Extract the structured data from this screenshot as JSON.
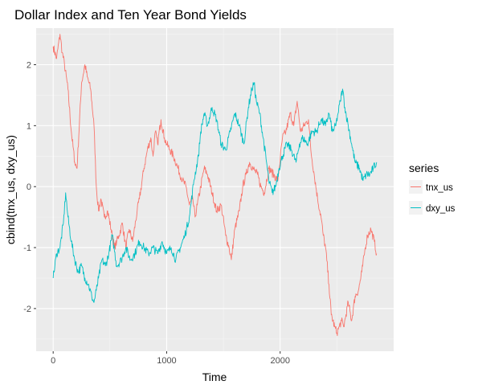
{
  "chart_data": {
    "type": "line",
    "title": "Dollar Index and Ten Year Bond Yields",
    "xlabel": "Time",
    "ylabel": "cbind(tnx_us, dxy_us)",
    "xlim": [
      -150,
      3000
    ],
    "ylim": [
      -2.7,
      2.6
    ],
    "x_ticks": [
      0,
      1000,
      2000
    ],
    "y_ticks": [
      -2,
      -1,
      0,
      1,
      2
    ],
    "grid": true,
    "legend": {
      "title": "series",
      "position": "right",
      "entries": [
        "tnx_us",
        "dxy_us"
      ]
    },
    "series": [
      {
        "name": "tnx_us",
        "color": "#F8766D",
        "x": [
          0,
          30,
          60,
          80,
          100,
          130,
          160,
          190,
          210,
          250,
          280,
          300,
          330,
          360,
          380,
          400,
          420,
          450,
          480,
          510,
          540,
          560,
          580,
          610,
          640,
          670,
          700,
          740,
          760,
          800,
          830,
          860,
          880,
          900,
          920,
          950,
          980,
          1000,
          1030,
          1060,
          1100,
          1140,
          1170,
          1200,
          1230,
          1250,
          1270,
          1300,
          1330,
          1360,
          1400,
          1440,
          1480,
          1520,
          1550,
          1570,
          1600,
          1640,
          1670,
          1700,
          1730,
          1760,
          1800,
          1830,
          1860,
          1900,
          1940,
          1980,
          2020,
          2050,
          2090,
          2120,
          2150,
          2180,
          2210,
          2250,
          2270,
          2300,
          2330,
          2360,
          2380,
          2400,
          2430,
          2450,
          2480,
          2500,
          2520,
          2540,
          2560,
          2580,
          2600,
          2630,
          2660,
          2690,
          2720,
          2750,
          2770,
          2800,
          2830,
          2850
        ],
        "y": [
          2.3,
          2.1,
          2.5,
          2.2,
          2.0,
          1.6,
          0.9,
          0.4,
          0.3,
          1.7,
          2.0,
          1.8,
          1.6,
          1.0,
          0.0,
          -0.4,
          -0.2,
          -0.5,
          -0.4,
          -0.7,
          -1.0,
          -0.9,
          -0.8,
          -0.6,
          -1.0,
          -0.7,
          -0.9,
          -0.4,
          -0.2,
          0.3,
          0.6,
          0.8,
          0.5,
          0.9,
          0.7,
          1.1,
          0.8,
          0.7,
          0.6,
          0.5,
          0.3,
          0.1,
          0.0,
          -0.3,
          -0.2,
          -0.5,
          -0.3,
          0.0,
          0.3,
          0.2,
          -0.1,
          -0.4,
          -0.3,
          -0.8,
          -1.0,
          -1.2,
          -0.7,
          -0.4,
          0.0,
          0.2,
          0.4,
          0.3,
          0.2,
          0.0,
          -0.1,
          0.3,
          0.2,
          0.1,
          0.8,
          0.9,
          1.2,
          1.0,
          1.4,
          0.9,
          1.0,
          1.1,
          0.6,
          0.2,
          -0.2,
          -0.5,
          -0.8,
          -1.0,
          -1.6,
          -2.1,
          -2.3,
          -2.4,
          -2.3,
          -2.2,
          -2.3,
          -2.1,
          -1.9,
          -2.2,
          -1.8,
          -1.7,
          -1.4,
          -1.0,
          -0.8,
          -0.7,
          -0.9,
          -1.1
        ]
      },
      {
        "name": "dxy_us",
        "color": "#00BFC4",
        "x": [
          0,
          30,
          60,
          90,
          110,
          130,
          160,
          190,
          220,
          250,
          280,
          310,
          340,
          360,
          380,
          400,
          430,
          460,
          490,
          520,
          560,
          600,
          640,
          680,
          720,
          760,
          800,
          840,
          880,
          920,
          960,
          1000,
          1040,
          1080,
          1120,
          1160,
          1200,
          1240,
          1280,
          1300,
          1330,
          1360,
          1400,
          1440,
          1480,
          1520,
          1560,
          1600,
          1640,
          1680,
          1720,
          1750,
          1770,
          1790,
          1820,
          1850,
          1880,
          1900,
          1930,
          1960,
          1990,
          2020,
          2060,
          2100,
          2140,
          2170,
          2200,
          2240,
          2280,
          2320,
          2360,
          2400,
          2430,
          2460,
          2490,
          2510,
          2530,
          2550,
          2570,
          2600,
          2630,
          2660,
          2700,
          2730,
          2760,
          2790,
          2820,
          2850
        ],
        "y": [
          -1.5,
          -1.1,
          -1.0,
          -0.6,
          -0.1,
          -0.5,
          -0.9,
          -1.2,
          -1.4,
          -1.3,
          -1.5,
          -1.6,
          -1.8,
          -1.9,
          -1.7,
          -1.5,
          -1.2,
          -1.3,
          -1.1,
          -0.8,
          -1.3,
          -1.2,
          -1.0,
          -1.2,
          -1.1,
          -0.9,
          -1.0,
          -1.1,
          -1.0,
          -1.1,
          -0.9,
          -1.1,
          -1.0,
          -1.2,
          -1.0,
          -0.8,
          -0.5,
          0.1,
          0.5,
          0.9,
          1.2,
          1.0,
          1.3,
          1.1,
          0.7,
          0.6,
          0.9,
          1.2,
          1.0,
          0.7,
          1.3,
          1.6,
          1.7,
          1.4,
          1.2,
          0.8,
          0.4,
          0.1,
          -0.1,
          0.0,
          0.3,
          0.5,
          0.7,
          0.6,
          0.4,
          0.7,
          0.8,
          0.7,
          0.9,
          0.9,
          1.1,
          1.0,
          1.2,
          0.9,
          1.0,
          1.2,
          1.4,
          1.6,
          1.3,
          1.0,
          0.7,
          0.4,
          0.3,
          0.1,
          0.2,
          0.2,
          0.3,
          0.4
        ]
      }
    ]
  }
}
